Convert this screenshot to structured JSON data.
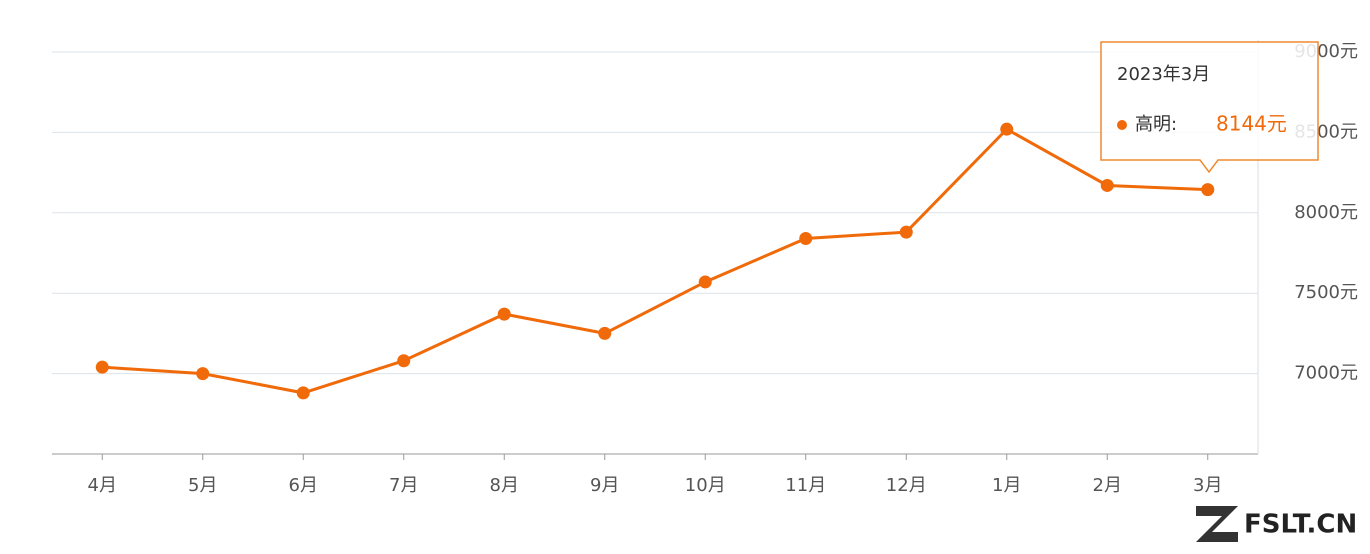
{
  "chart_data": {
    "type": "line",
    "categories": [
      "4月",
      "5月",
      "6月",
      "7月",
      "8月",
      "9月",
      "10月",
      "11月",
      "12月",
      "1月",
      "2月",
      "3月"
    ],
    "series": [
      {
        "name": "高明:",
        "color": "#f06a0a",
        "values": [
          7040,
          7000,
          6880,
          7080,
          7370,
          7250,
          7570,
          7840,
          7880,
          8520,
          8170,
          8144
        ],
        "value_labels": [
          null,
          null,
          null,
          null,
          null,
          null,
          null,
          null,
          null,
          null,
          null,
          "8144元"
        ]
      }
    ],
    "ylim": [
      6500,
      9000
    ],
    "yticks": [
      {
        "value": 7000,
        "label": "7000元"
      },
      {
        "value": 7500,
        "label": "7500元"
      },
      {
        "value": 8000,
        "label": "8000元"
      },
      {
        "value": 8500,
        "label": "8500元"
      },
      {
        "value": 9000,
        "label": "9000元"
      }
    ],
    "grid": true,
    "tooltip_title": "2023年3月",
    "watermark": "FSLT.CN"
  }
}
